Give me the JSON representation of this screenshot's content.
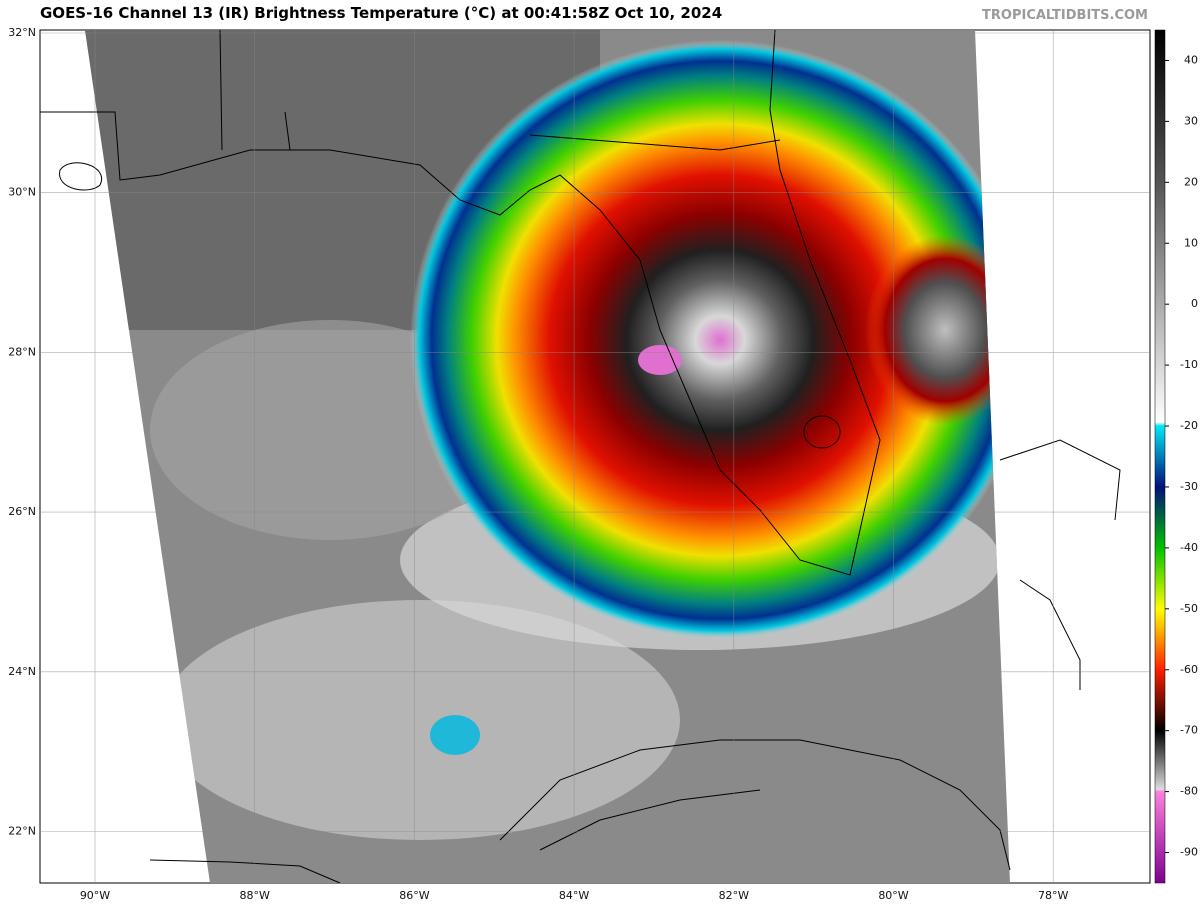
{
  "header": {
    "title": "GOES-16 Channel 13 (IR) Brightness Temperature (°C) at 00:41:58Z Oct 10, 2024",
    "site": "TROPICALTIDBITS.COM"
  },
  "map": {
    "lat_labels": [
      "32°N",
      "30°N",
      "28°N",
      "26°N",
      "24°N",
      "22°N"
    ],
    "lon_labels": [
      "90°W",
      "88°W",
      "86°W",
      "84°W",
      "82°W",
      "80°W",
      "78°W"
    ]
  },
  "colorbar": {
    "lim": [
      -95,
      45
    ],
    "ticks": [
      40,
      30,
      20,
      10,
      0,
      -10,
      -20,
      -30,
      -40,
      -50,
      -60,
      -70,
      -80,
      -90
    ]
  }
}
